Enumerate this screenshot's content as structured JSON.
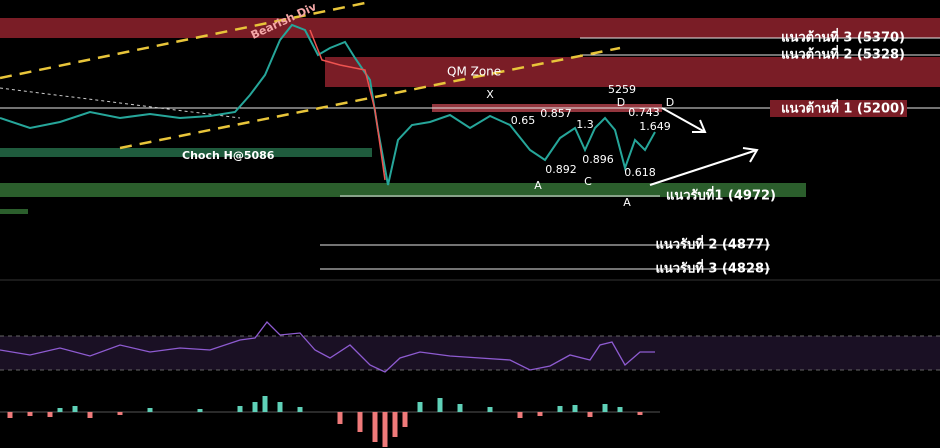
{
  "zones": {
    "bearish_div": "Bearish Div",
    "qm_zone": "QM Zone",
    "choch": "Choch H@5086"
  },
  "levels": {
    "resistance_3": "แนวต้านที่ 3 (5370)",
    "resistance_2": "แนวต้านที่ 2 (5328)",
    "resistance_1": "แนวต้านที่ 1 (5200)",
    "support_1": "แนวรับที่1 (4972)",
    "support_2": "แนวรับที่ 2 (4877)",
    "support_3": "แนวรับที่ 3 (4828)"
  },
  "wave_labels": [
    "X",
    "0.65",
    "0.857",
    "5259",
    "D",
    "0.743",
    "D",
    "1.649",
    "1.3",
    "0.892",
    "0.896",
    "A",
    "C",
    "A",
    "0.618"
  ]
}
